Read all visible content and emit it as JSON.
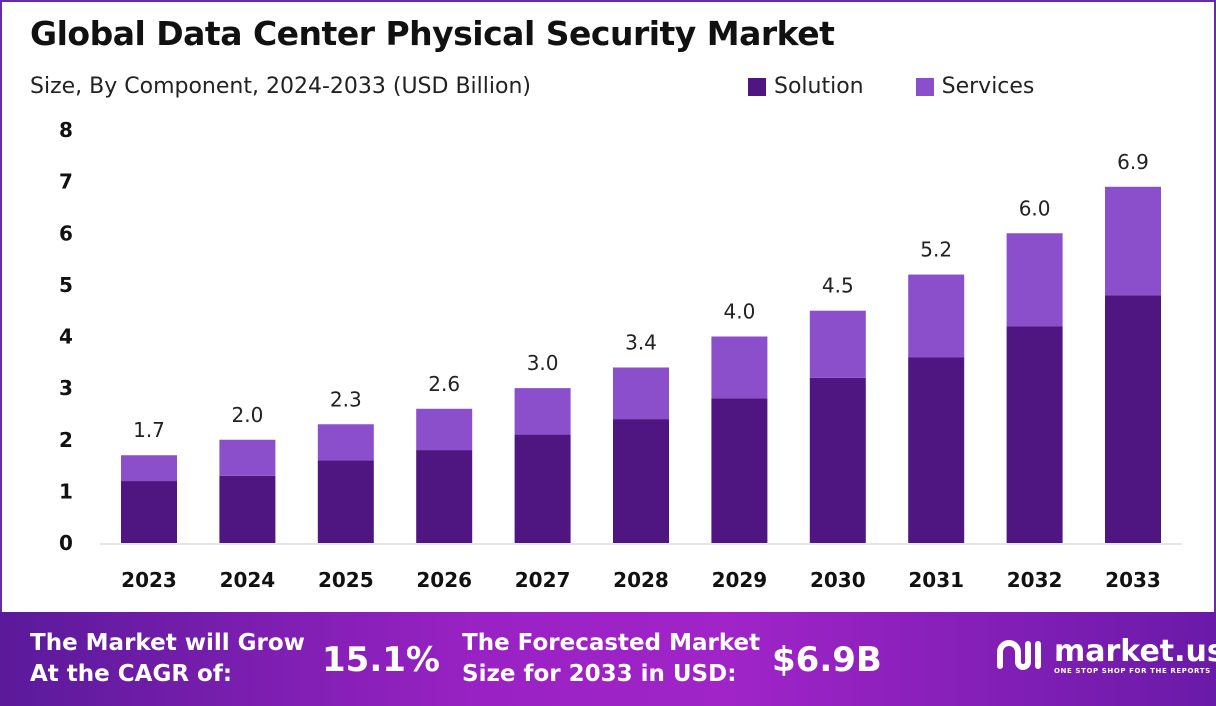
{
  "title": "Global Data Center Physical Security Market",
  "subtitle": "Size, By Component, 2024-2033 (USD Billion)",
  "colors": {
    "solution": "#4f1580",
    "services": "#8b4fcc"
  },
  "chart_data": {
    "type": "bar",
    "stacked": true,
    "categories": [
      "2023",
      "2024",
      "2025",
      "2026",
      "2027",
      "2028",
      "2029",
      "2030",
      "2031",
      "2032",
      "2033"
    ],
    "series": [
      {
        "name": "Solution",
        "values": [
          1.2,
          1.3,
          1.6,
          1.8,
          2.1,
          2.4,
          2.8,
          3.2,
          3.6,
          4.2,
          4.8
        ]
      },
      {
        "name": "Services",
        "values": [
          0.5,
          0.7,
          0.7,
          0.8,
          0.9,
          1.0,
          1.2,
          1.3,
          1.6,
          1.8,
          2.1
        ]
      }
    ],
    "totals": [
      "1.7",
      "2.0",
      "2.3",
      "2.6",
      "3.0",
      "3.4",
      "4.0",
      "4.5",
      "5.2",
      "6.0",
      "6.9"
    ],
    "ylim": [
      0,
      8
    ],
    "yticks": [
      "0",
      "1",
      "2",
      "3",
      "4",
      "5",
      "6",
      "7",
      "8"
    ],
    "grid": false,
    "legend_position": "top-right"
  },
  "footer": {
    "cagr_label_1": "The Market will Grow",
    "cagr_label_2": "At the CAGR of:",
    "cagr_value": "15.1%",
    "forecast_label_1": "The Forecasted Market",
    "forecast_label_2": "Size for 2033 in USD:",
    "forecast_value": "$6.9B",
    "logo_name": "market.us",
    "logo_tagline": "ONE STOP SHOP FOR THE REPORTS"
  }
}
